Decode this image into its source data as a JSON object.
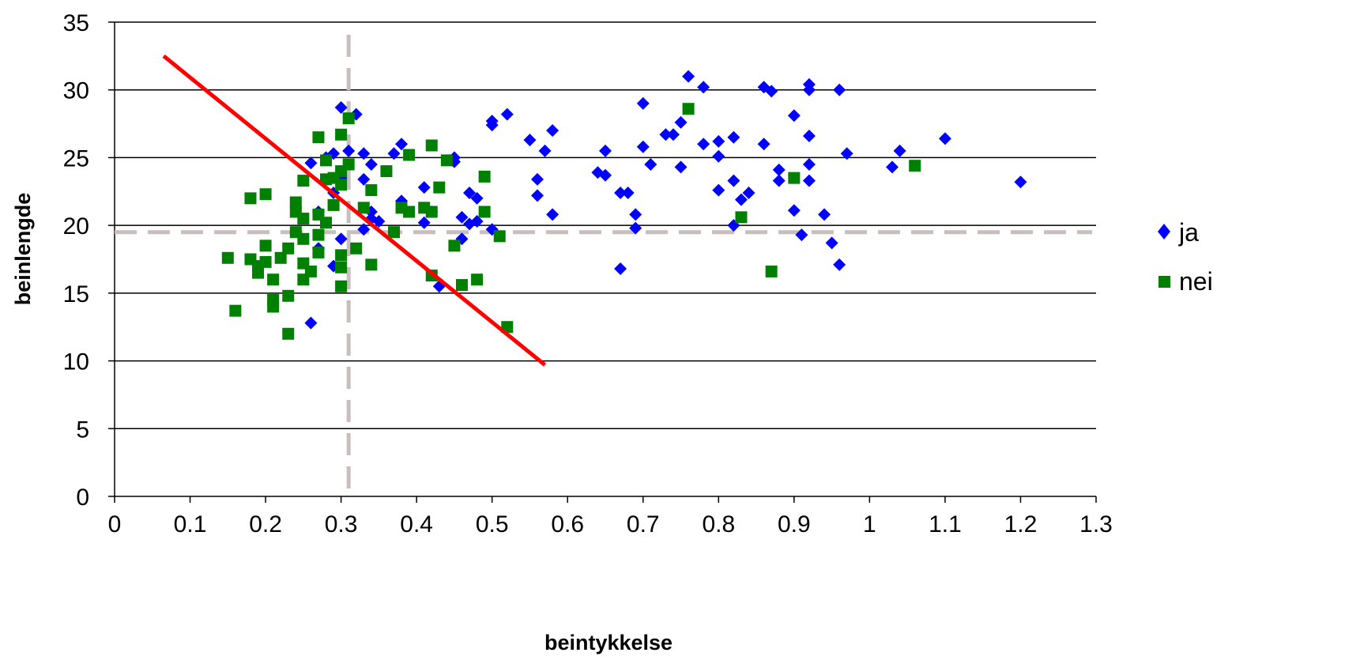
{
  "chart_data": {
    "type": "scatter",
    "title": "",
    "xlabel": "beintykkelse",
    "ylabel": "beinlengde",
    "xlim": [
      0,
      1.3
    ],
    "ylim": [
      0,
      35
    ],
    "x_ticks": [
      "0",
      "0.1",
      "0.2",
      "0.3",
      "0.4",
      "0.5",
      "0.6",
      "0.7",
      "0.8",
      "0.9",
      "1",
      "1.1",
      "1.2",
      "1.3"
    ],
    "y_ticks": [
      "0",
      "5",
      "10",
      "15",
      "20",
      "25",
      "30",
      "35"
    ],
    "grid": "horizontal",
    "legend_position": "right",
    "series": [
      {
        "name": "ja",
        "marker": "diamond",
        "color": "#0000ff",
        "points": [
          [
            0.26,
            24.6
          ],
          [
            0.27,
            21
          ],
          [
            0.28,
            25
          ],
          [
            0.29,
            25.3
          ],
          [
            0.29,
            22.4
          ],
          [
            0.3,
            28.7
          ],
          [
            0.3,
            23.5
          ],
          [
            0.31,
            25.5
          ],
          [
            0.32,
            28.2
          ],
          [
            0.33,
            25.3
          ],
          [
            0.33,
            23.4
          ],
          [
            0.34,
            24.5
          ],
          [
            0.34,
            21
          ],
          [
            0.35,
            20.3
          ],
          [
            0.37,
            25.3
          ],
          [
            0.38,
            26
          ],
          [
            0.38,
            21.8
          ],
          [
            0.41,
            22.8
          ],
          [
            0.41,
            20.2
          ],
          [
            0.42,
            21
          ],
          [
            0.45,
            25
          ],
          [
            0.45,
            24.7
          ],
          [
            0.46,
            20.6
          ],
          [
            0.47,
            22.4
          ],
          [
            0.48,
            22
          ],
          [
            0.48,
            20.3
          ],
          [
            0.47,
            20.1
          ],
          [
            0.46,
            19
          ],
          [
            0.5,
            27.7
          ],
          [
            0.5,
            27.4
          ],
          [
            0.52,
            28.2
          ],
          [
            0.5,
            19.7
          ],
          [
            0.55,
            26.3
          ],
          [
            0.56,
            23.4
          ],
          [
            0.56,
            22.2
          ],
          [
            0.57,
            25.5
          ],
          [
            0.58,
            27
          ],
          [
            0.58,
            20.8
          ],
          [
            0.64,
            23.9
          ],
          [
            0.65,
            23.7
          ],
          [
            0.65,
            25.5
          ],
          [
            0.67,
            22.4
          ],
          [
            0.68,
            22.4
          ],
          [
            0.67,
            16.8
          ],
          [
            0.69,
            20.8
          ],
          [
            0.69,
            19.8
          ],
          [
            0.7,
            29
          ],
          [
            0.7,
            25.8
          ],
          [
            0.71,
            24.5
          ],
          [
            0.73,
            26.7
          ],
          [
            0.74,
            26.7
          ],
          [
            0.75,
            27.6
          ],
          [
            0.75,
            24.3
          ],
          [
            0.76,
            31
          ],
          [
            0.78,
            30.2
          ],
          [
            0.78,
            26
          ],
          [
            0.8,
            26.2
          ],
          [
            0.8,
            25.1
          ],
          [
            0.8,
            22.6
          ],
          [
            0.82,
            26.5
          ],
          [
            0.82,
            23.3
          ],
          [
            0.82,
            20
          ],
          [
            0.83,
            21.9
          ],
          [
            0.84,
            22.4
          ],
          [
            0.86,
            30.2
          ],
          [
            0.86,
            26
          ],
          [
            0.87,
            29.9
          ],
          [
            0.88,
            24.1
          ],
          [
            0.88,
            23.3
          ],
          [
            0.9,
            28.1
          ],
          [
            0.9,
            21.1
          ],
          [
            0.91,
            19.3
          ],
          [
            0.92,
            30.4
          ],
          [
            0.92,
            30
          ],
          [
            0.92,
            26.6
          ],
          [
            0.92,
            24.5
          ],
          [
            0.92,
            23.3
          ],
          [
            0.94,
            20.8
          ],
          [
            0.95,
            18.7
          ],
          [
            0.96,
            30
          ],
          [
            0.96,
            17.1
          ],
          [
            0.97,
            25.3
          ],
          [
            1.03,
            24.3
          ],
          [
            1.04,
            25.5
          ],
          [
            1.1,
            26.4
          ],
          [
            1.2,
            23.2
          ],
          [
            0.26,
            12.8
          ],
          [
            0.27,
            18.3
          ],
          [
            0.29,
            17
          ],
          [
            0.3,
            19
          ],
          [
            0.43,
            15.5
          ],
          [
            0.33,
            19.7
          ],
          [
            0.34,
            20.5
          ]
        ]
      },
      {
        "name": "nei",
        "marker": "square",
        "color": "#008000",
        "points": [
          [
            0.15,
            17.6
          ],
          [
            0.16,
            13.7
          ],
          [
            0.18,
            22
          ],
          [
            0.18,
            17.5
          ],
          [
            0.19,
            17
          ],
          [
            0.19,
            16.5
          ],
          [
            0.2,
            22.3
          ],
          [
            0.2,
            18.5
          ],
          [
            0.2,
            17.3
          ],
          [
            0.21,
            16
          ],
          [
            0.21,
            14.5
          ],
          [
            0.21,
            14
          ],
          [
            0.22,
            17.6
          ],
          [
            0.23,
            18.3
          ],
          [
            0.23,
            14.8
          ],
          [
            0.23,
            12
          ],
          [
            0.24,
            21.7
          ],
          [
            0.24,
            21
          ],
          [
            0.24,
            19.5
          ],
          [
            0.25,
            23.3
          ],
          [
            0.25,
            20.5
          ],
          [
            0.25,
            19
          ],
          [
            0.25,
            17.2
          ],
          [
            0.25,
            16
          ],
          [
            0.26,
            16.6
          ],
          [
            0.27,
            26.5
          ],
          [
            0.27,
            20.8
          ],
          [
            0.27,
            19.3
          ],
          [
            0.27,
            18
          ],
          [
            0.28,
            24.8
          ],
          [
            0.28,
            23.4
          ],
          [
            0.28,
            20.2
          ],
          [
            0.29,
            23.5
          ],
          [
            0.29,
            21.5
          ],
          [
            0.3,
            26.7
          ],
          [
            0.3,
            24
          ],
          [
            0.3,
            23
          ],
          [
            0.3,
            17.8
          ],
          [
            0.3,
            16.9
          ],
          [
            0.3,
            15.5
          ],
          [
            0.31,
            27.9
          ],
          [
            0.31,
            24.5
          ],
          [
            0.32,
            18.3
          ],
          [
            0.33,
            21.3
          ],
          [
            0.34,
            22.6
          ],
          [
            0.34,
            17.1
          ],
          [
            0.36,
            24
          ],
          [
            0.37,
            19.5
          ],
          [
            0.38,
            21.3
          ],
          [
            0.39,
            25.2
          ],
          [
            0.39,
            21
          ],
          [
            0.41,
            21.3
          ],
          [
            0.42,
            25.9
          ],
          [
            0.42,
            21
          ],
          [
            0.42,
            16.3
          ],
          [
            0.43,
            22.8
          ],
          [
            0.44,
            24.8
          ],
          [
            0.45,
            18.5
          ],
          [
            0.46,
            15.6
          ],
          [
            0.48,
            16
          ],
          [
            0.49,
            23.6
          ],
          [
            0.49,
            21
          ],
          [
            0.51,
            19.2
          ],
          [
            0.52,
            12.5
          ],
          [
            0.76,
            28.6
          ],
          [
            0.83,
            20.6
          ],
          [
            0.87,
            16.6
          ],
          [
            0.9,
            23.5
          ],
          [
            1.06,
            24.4
          ]
        ]
      }
    ],
    "reference_lines": {
      "vertical_x": 0.31,
      "horizontal_y": 19.5,
      "style": "dashed",
      "color": "#c8bebe"
    },
    "red_line": {
      "color": "#ff0000",
      "from": [
        0.065,
        32.5
      ],
      "to": [
        0.57,
        9.7
      ]
    }
  }
}
